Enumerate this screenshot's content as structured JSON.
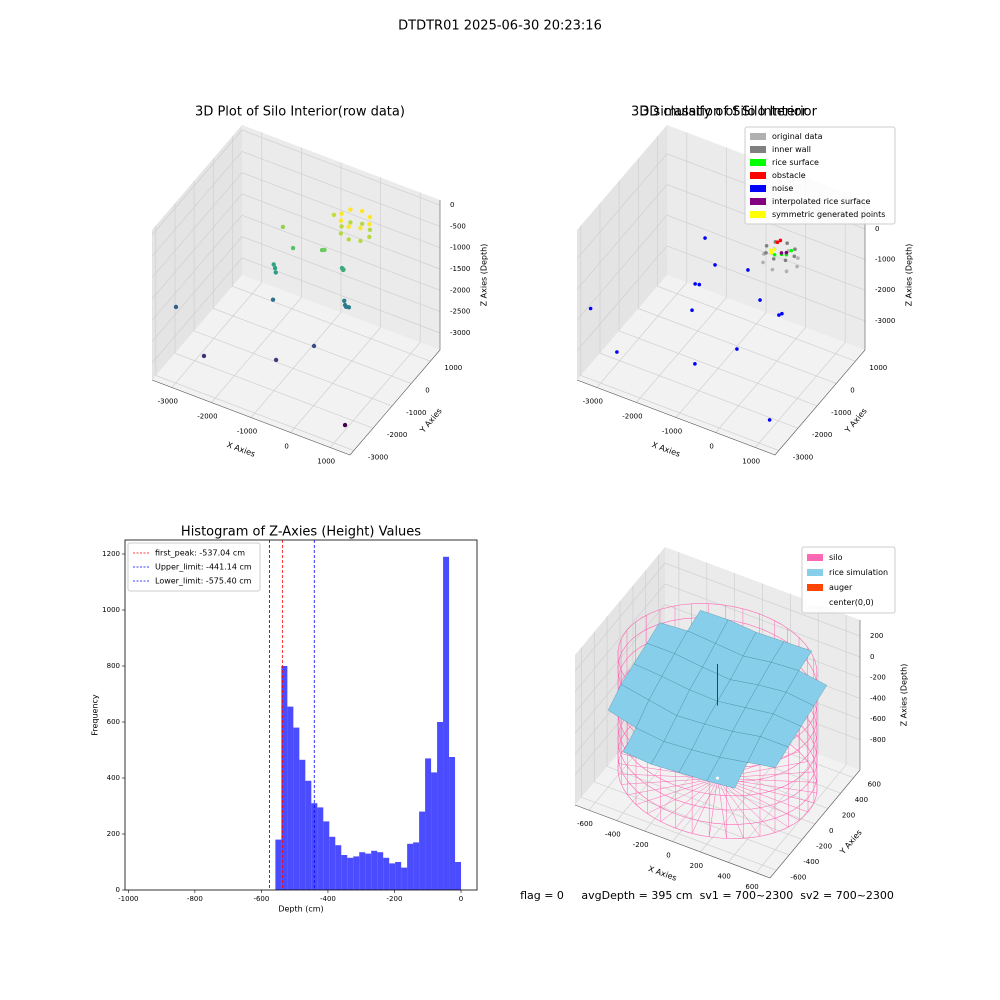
{
  "suptitle": "DTDTR01 2025-06-30 20:23:16",
  "footer": "flag = 0     avgDepth = 395 cm  sv1 = 700~2300  sv2 = 700~2300",
  "chart_data": [
    {
      "type": "scatter3d",
      "title": "3D Plot of Silo Interior(row data)",
      "xlabel": "X Axies",
      "ylabel": "Y Axies",
      "zlabel": "Z Axies (Depth)",
      "xlim": [
        -3500,
        1500
      ],
      "ylim": [
        -3200,
        1500
      ],
      "zlim": [
        -3400,
        120
      ],
      "xticks": [
        -3000,
        -2000,
        -1000,
        0,
        1000
      ],
      "yticks": [
        -3000,
        -2000,
        -1000,
        0,
        1000
      ],
      "zticks": [
        0,
        -500,
        -1000,
        -1500,
        -2000,
        -2500,
        -3000
      ],
      "colormap": "viridis",
      "x": [
        1125,
        -2415,
        -905,
        -340,
        -3470,
        -70,
        -20,
        40,
        -120,
        -1600,
        -1730,
        -1680,
        -1780,
        -385,
        -330,
        -300,
        -1435,
        -1765,
        -780,
        -700,
        -850,
        150,
        47,
        -200,
        -447,
        -550,
        -447,
        -200,
        47,
        150,
        47,
        -200,
        -447,
        -550,
        -447,
        -200,
        47
      ],
      "y": [
        -2683,
        -2730,
        -2086,
        -1273,
        -2010,
        -211,
        -260,
        -240,
        -150,
        -808,
        -432,
        -500,
        -400,
        280,
        230,
        180,
        -103,
        48,
        57,
        20,
        820,
        600,
        847,
        950,
        847,
        600,
        353,
        250,
        353,
        600,
        847,
        950,
        847,
        600,
        353,
        250,
        353
      ],
      "z": [
        -3100,
        -2700,
        -2600,
        -2500,
        -2300,
        -2000,
        -2000,
        -2000,
        -1950,
        -2100,
        -1600,
        -1650,
        -1550,
        -1500,
        -1500,
        -1450,
        -1200,
        -900,
        -1100,
        -1050,
        -700,
        -450,
        -450,
        -450,
        -450,
        -450,
        -450,
        -450,
        -450,
        -750,
        -750,
        -750,
        -750,
        -750,
        -750,
        -750,
        -750
      ]
    },
    {
      "type": "scatter3d",
      "title": "3D classify of Silo Interior",
      "xlabel": "X Axies",
      "ylabel": "Y Axies",
      "zlabel": "Z Axies (Depth)",
      "xlim": [
        -3500,
        1500
      ],
      "ylim": [
        -3200,
        1500
      ],
      "zlim": [
        -3950,
        940
      ],
      "xticks": [
        -3000,
        -2000,
        -1000,
        0,
        1000
      ],
      "yticks": [
        -3000,
        -2000,
        -1000,
        0,
        1000
      ],
      "zticks": [
        0,
        -1000,
        -2000,
        -3000
      ],
      "legend": "upper right",
      "series": [
        {
          "name": "original data",
          "color": "#b0b0b0",
          "x": [
            220,
            97,
            -200,
            -497,
            -620,
            -497,
            -200,
            97
          ],
          "y": [
            600,
            897,
            1020,
            897,
            600,
            303,
            180,
            303
          ],
          "z": [
            -1200,
            -1200,
            -1200,
            -1200,
            -1200,
            -1200,
            -1200,
            -1200
          ]
        },
        {
          "name": "inner wall",
          "color": "#808080",
          "x": [
            150,
            47,
            -200,
            -447,
            -550,
            -447,
            -200,
            47
          ],
          "y": [
            600,
            847,
            950,
            847,
            600,
            353,
            250,
            353
          ],
          "z": [
            -900,
            -900,
            -900,
            -900,
            -900,
            -900,
            -900,
            -900
          ]
        },
        {
          "name": "rice surface",
          "color": "#00ff00",
          "x": [
            -100,
            0,
            -250,
            50
          ],
          "y": [
            450,
            500,
            400,
            650
          ],
          "z": [
            -850,
            -850,
            -900,
            -800
          ]
        },
        {
          "name": "obstacle",
          "color": "#ff0000",
          "x": [
            -300,
            -250
          ],
          "y": [
            650,
            700
          ],
          "z": [
            -700,
            -650
          ]
        },
        {
          "name": "noise",
          "color": "#0000ff",
          "x": [
            1050,
            -1040,
            -2720,
            -230,
            -1470,
            165,
            -440,
            200,
            -1650,
            -1020,
            -310,
            -1590,
            -1500,
            -3180
          ],
          "y": [
            -2550,
            -2130,
            -2730,
            -1610,
            -1390,
            -234,
            30,
            -150,
            -340,
            -1120,
            -870,
            -980,
            -950,
            -3150
          ],
          "z": [
            -3500,
            -3000,
            -3000,
            -2500,
            -2000,
            -2200,
            -2200,
            -2200,
            -500,
            -500,
            -500,
            -1500,
            -1500,
            -1500
          ]
        },
        {
          "name": "interpolated rice surface",
          "color": "#800080",
          "x": [
            -150,
            -50
          ],
          "y": [
            550,
            600
          ],
          "z": [
            -900,
            -880
          ]
        },
        {
          "name": "symmetric generated points",
          "color": "#ffff00",
          "x": [
            -350,
            -300,
            -280
          ],
          "y": [
            400,
            350,
            450
          ],
          "z": [
            -800,
            -820,
            -780
          ]
        }
      ]
    },
    {
      "type": "histogram",
      "title": "Histogram of Z-Axies (Height) Values",
      "xlabel": "Depth (cm)",
      "ylabel": "Frequency",
      "xlim": [
        -1010,
        48
      ],
      "ylim": [
        0,
        1250
      ],
      "xticks": [
        -1000,
        -800,
        -600,
        -400,
        -200,
        0
      ],
      "yticks": [
        0,
        200,
        400,
        600,
        800,
        1000,
        1200
      ],
      "color": "#0000ff",
      "alpha": 0.7,
      "legend": "upper left",
      "bins": [
        -558,
        -540,
        -522,
        -504,
        -486,
        -468,
        -450,
        -432,
        -414,
        -396,
        -378,
        -360,
        -342,
        -324,
        -306,
        -288,
        -270,
        -252,
        -234,
        -216,
        -198,
        -180,
        -162,
        -144,
        -126,
        -108,
        -90,
        -72,
        -54,
        -36,
        -18,
        0
      ],
      "counts": [
        180,
        800,
        655,
        580,
        465,
        390,
        310,
        295,
        245,
        190,
        160,
        125,
        115,
        120,
        135,
        130,
        140,
        135,
        115,
        95,
        100,
        80,
        165,
        170,
        280,
        470,
        420,
        600,
        1190,
        475,
        100
      ],
      "lines": [
        {
          "name": "first_peak: -537.04 cm",
          "value": -537.04,
          "color": "#ff0000"
        },
        {
          "name": "Upper_limit: -441.14 cm",
          "value": -441.14,
          "color": "#0000ff"
        },
        {
          "name": "Lower_limit: -575.40 cm",
          "value": -575.4,
          "color": "#0000ff"
        }
      ]
    },
    {
      "type": "surface3d",
      "title": "3D simulation of Silo Interior",
      "xlabel": "X Axies",
      "ylabel": "Y Axies",
      "zlabel": "Z Axies (Depth)",
      "xlim": [
        -700,
        700
      ],
      "ylim": [
        -700,
        700
      ],
      "zlim": [
        -1090,
        355
      ],
      "xticks": [
        -600,
        -400,
        -200,
        0,
        200,
        400,
        600
      ],
      "yticks": [
        -600,
        -400,
        -200,
        0,
        200,
        400,
        600
      ],
      "zticks": [
        200,
        0,
        -200,
        -400,
        -600,
        -800
      ],
      "legend": "upper right",
      "series": [
        {
          "name": "silo",
          "color": "#ff69b4",
          "radius": 650,
          "zmin": -1000,
          "zmax": 100
        },
        {
          "name": "rice simulation",
          "color": "#87ceeb",
          "x": [
            -600,
            -400,
            -200,
            0,
            200,
            400,
            600
          ],
          "y": [
            -600,
            -400,
            -200,
            0,
            200,
            400,
            600
          ],
          "z": [
            [
              -450,
              -500,
              -520,
              -500,
              -480,
              -450,
              -400
            ],
            [
              -350,
              -420,
              -450,
              -430,
              -400,
              -350,
              -300
            ],
            [
              -250,
              -300,
              -350,
              -330,
              -300,
              -250,
              -250
            ],
            [
              -200,
              -220,
              -250,
              -260,
              -220,
              -180,
              -200
            ],
            [
              -150,
              -150,
              -180,
              -200,
              -150,
              -120,
              -150
            ],
            [
              -100,
              -80,
              -100,
              -120,
              -80,
              -60,
              -100
            ],
            [
              -50,
              -30,
              -20,
              -40,
              -30,
              -20,
              -50
            ]
          ]
        },
        {
          "name": "auger",
          "color": "#ff4500",
          "x": [
            0,
            0
          ],
          "y": [
            0,
            0
          ],
          "z": [
            -300,
            100
          ]
        },
        {
          "name": "center(0,0)",
          "color": "#ffffff",
          "x": [
            0
          ],
          "y": [
            0
          ],
          "z": [
            -1000
          ]
        }
      ]
    }
  ]
}
